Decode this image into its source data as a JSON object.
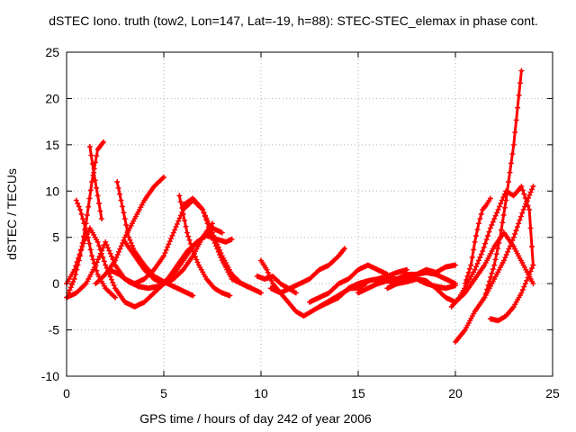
{
  "chart_data": {
    "type": "scatter",
    "title": "dSTEC Iono. truth (tow2, Lon=147, Lat=-19, h=88): STEC-STEC_elemax in phase cont.",
    "xlabel": "GPS time / hours of day 242 of year 2006",
    "ylabel": "dSTEC  / TECUs",
    "xlim": [
      0,
      25
    ],
    "ylim": [
      -10,
      25
    ],
    "xticks": [
      0,
      5,
      10,
      15,
      20,
      25
    ],
    "yticks": [
      -10,
      -5,
      0,
      5,
      10,
      15,
      20,
      25
    ],
    "grid": true,
    "marker": "+",
    "color": "#ff0000",
    "series": [
      {
        "x": [
          0.0,
          0.5,
          1.0,
          1.5,
          2.0,
          2.5,
          3.0,
          3.5,
          4.0,
          4.5,
          5.0,
          5.5,
          6.0,
          6.5,
          7.0,
          7.5,
          8.0,
          8.5,
          9.0,
          9.5,
          10.0
        ],
        "y": [
          -1.5,
          -1.0,
          0.0,
          2.0,
          4.5,
          2.0,
          0.5,
          0.0,
          0.5,
          1.5,
          3.0,
          5.5,
          8.0,
          9.0,
          8.0,
          5.0,
          2.5,
          0.5,
          0.0,
          -0.5,
          -1.0
        ]
      },
      {
        "x": [
          0.0,
          0.4,
          0.8,
          1.2,
          1.6,
          2.0,
          2.5,
          3.0,
          3.5,
          4.0,
          4.5,
          5.0,
          5.5,
          6.0,
          6.5,
          7.0,
          7.5,
          8.0
        ],
        "y": [
          0.0,
          1.5,
          4.0,
          6.0,
          4.5,
          2.0,
          -0.5,
          -2.0,
          -2.5,
          -2.0,
          -1.0,
          0.0,
          1.0,
          2.5,
          4.0,
          5.0,
          6.0,
          5.5
        ]
      },
      {
        "x": [
          0.1,
          0.4,
          0.7,
          1.0,
          1.3,
          1.6,
          1.9
        ],
        "y": [
          -1.0,
          0.5,
          3.0,
          6.5,
          11.0,
          14.5,
          15.3
        ]
      },
      {
        "x": [
          0.5,
          0.7,
          0.9,
          1.1,
          1.3,
          1.6,
          2.0,
          2.5
        ],
        "y": [
          9.0,
          8.0,
          6.5,
          5.0,
          3.0,
          1.0,
          -0.5,
          -1.5
        ]
      },
      {
        "x": [
          1.2,
          1.4,
          1.6,
          1.8
        ],
        "y": [
          14.8,
          12.0,
          9.5,
          7.0
        ]
      },
      {
        "x": [
          1.5,
          2.0,
          2.5,
          3.0,
          3.5,
          4.0,
          4.5,
          5.0
        ],
        "y": [
          0.0,
          1.0,
          2.5,
          5.0,
          7.0,
          9.0,
          10.5,
          11.5
        ]
      },
      {
        "x": [
          2.6,
          2.8,
          3.0,
          3.2,
          3.5,
          4.0,
          4.5,
          5.0,
          5.5,
          6.0,
          6.5
        ],
        "y": [
          11.0,
          9.0,
          7.0,
          5.0,
          3.5,
          2.0,
          0.8,
          0.2,
          -0.3,
          -0.8,
          -1.3
        ]
      },
      {
        "x": [
          2.2,
          2.7,
          3.2,
          3.7,
          4.2,
          4.7,
          5.2,
          5.7,
          6.2,
          6.7,
          7.2,
          7.7,
          8.2,
          8.5
        ],
        "y": [
          1.5,
          1.0,
          0.2,
          -0.3,
          -0.5,
          -0.3,
          0.5,
          2.0,
          3.5,
          4.5,
          5.2,
          4.8,
          4.5,
          4.8
        ]
      },
      {
        "x": [
          5.8,
          6.0,
          6.2,
          6.5,
          6.8,
          7.2,
          7.6,
          8.0,
          8.4
        ],
        "y": [
          9.5,
          7.5,
          5.5,
          3.5,
          2.0,
          0.5,
          -0.5,
          -1.0,
          -1.3
        ]
      },
      {
        "x": [
          6.0,
          6.5,
          7.0,
          7.5,
          8.0,
          8.5,
          9.0,
          9.5
        ],
        "y": [
          8.5,
          9.2,
          8.0,
          5.5,
          3.0,
          1.0,
          0.0,
          -0.5
        ]
      },
      {
        "x": [
          3.0,
          3.5,
          4.0,
          4.5,
          5.0,
          5.5,
          6.0,
          6.5,
          7.0,
          7.5
        ],
        "y": [
          4.5,
          3.0,
          1.5,
          0.5,
          0.0,
          0.5,
          1.5,
          3.0,
          5.0,
          6.5
        ]
      },
      {
        "x": [
          10.0,
          10.3,
          10.6,
          11.0,
          11.4,
          11.8,
          12.2,
          12.6,
          13.0,
          13.4,
          13.8,
          14.2,
          14.6,
          15.0,
          15.4
        ],
        "y": [
          2.5,
          1.5,
          0.0,
          -1.0,
          -2.0,
          -3.0,
          -3.5,
          -3.0,
          -2.5,
          -2.0,
          -1.5,
          -1.0,
          -0.5,
          -0.5,
          0.0
        ]
      },
      {
        "x": [
          10.5,
          11.0,
          11.5,
          12.0,
          12.5,
          13.0,
          13.5,
          14.0,
          14.3
        ],
        "y": [
          -0.5,
          -1.0,
          -0.5,
          0.0,
          0.5,
          1.5,
          2.0,
          3.0,
          3.8
        ]
      },
      {
        "x": [
          9.8,
          10.2,
          10.6,
          11.0,
          11.4,
          11.8
        ],
        "y": [
          0.8,
          0.5,
          0.8,
          0.0,
          -0.5,
          -1.0
        ]
      },
      {
        "x": [
          12.5,
          13.0,
          13.5,
          14.0,
          14.5,
          15.0,
          15.5,
          16.0,
          16.5
        ],
        "y": [
          -2.0,
          -1.5,
          -1.0,
          0.0,
          0.5,
          1.5,
          2.0,
          1.5,
          1.0
        ]
      },
      {
        "x": [
          13.0,
          13.5,
          14.0,
          14.5,
          15.0,
          15.5,
          16.0,
          16.5,
          17.0,
          17.5
        ],
        "y": [
          -2.5,
          -2.0,
          -1.5,
          -0.5,
          0.0,
          0.3,
          0.5,
          0.8,
          1.2,
          1.5
        ]
      },
      {
        "x": [
          15.0,
          15.5,
          16.0,
          16.5,
          17.0,
          17.5,
          18.0,
          18.5,
          19.0,
          19.5,
          20.0
        ],
        "y": [
          -1.0,
          -0.5,
          0.0,
          0.5,
          0.5,
          1.0,
          1.0,
          1.5,
          1.2,
          1.8,
          2.0
        ]
      },
      {
        "x": [
          16.0,
          16.5,
          17.0,
          17.5,
          18.0,
          18.5,
          19.0,
          19.5,
          20.0
        ],
        "y": [
          0.0,
          0.3,
          0.0,
          0.2,
          0.5,
          0.0,
          -0.3,
          -0.5,
          -0.2
        ]
      },
      {
        "x": [
          17.0,
          17.5,
          18.0,
          18.5,
          19.0,
          19.5,
          20.0
        ],
        "y": [
          0.5,
          0.8,
          1.0,
          1.2,
          1.0,
          0.5,
          0.0
        ]
      },
      {
        "x": [
          16.5,
          17.0,
          17.5,
          18.0,
          18.5,
          19.0,
          19.5,
          20.0,
          20.5,
          21.0,
          21.5,
          22.0,
          22.5,
          23.0,
          23.5,
          24.0
        ],
        "y": [
          -0.5,
          0.0,
          0.3,
          0.5,
          0.3,
          -0.5,
          -1.5,
          -2.0,
          -1.0,
          0.5,
          2.0,
          4.0,
          5.5,
          4.0,
          2.0,
          0.0
        ]
      },
      {
        "x": [
          19.8,
          20.2,
          20.6,
          21.0,
          21.4,
          21.8,
          22.2,
          22.6,
          23.0,
          23.4,
          23.8,
          24.0
        ],
        "y": [
          -2.5,
          -1.5,
          0.0,
          1.5,
          3.5,
          6.0,
          8.0,
          10.0,
          9.5,
          10.5,
          8.0,
          2.0
        ]
      },
      {
        "x": [
          20.0,
          20.5,
          21.0,
          21.5,
          22.0,
          22.5,
          23.0,
          23.5,
          24.0
        ],
        "y": [
          -6.3,
          -5.0,
          -3.0,
          -1.5,
          0.5,
          2.5,
          5.0,
          8.0,
          10.5
        ]
      },
      {
        "x": [
          21.5,
          22.0,
          22.3,
          22.6,
          22.8,
          23.0,
          23.2,
          23.4
        ],
        "y": [
          -1.5,
          2.0,
          5.0,
          9.0,
          12.0,
          15.0,
          19.0,
          23.0
        ]
      },
      {
        "x": [
          20.5,
          20.8,
          21.0,
          21.2,
          21.4,
          21.6,
          21.8
        ],
        "y": [
          0.0,
          2.0,
          4.5,
          6.5,
          8.0,
          8.5,
          9.2
        ]
      },
      {
        "x": [
          21.8,
          22.2,
          22.6,
          23.0,
          23.4,
          23.8,
          24.0
        ],
        "y": [
          -3.8,
          -4.0,
          -3.5,
          -2.5,
          -1.0,
          1.0,
          2.0
        ]
      }
    ]
  }
}
